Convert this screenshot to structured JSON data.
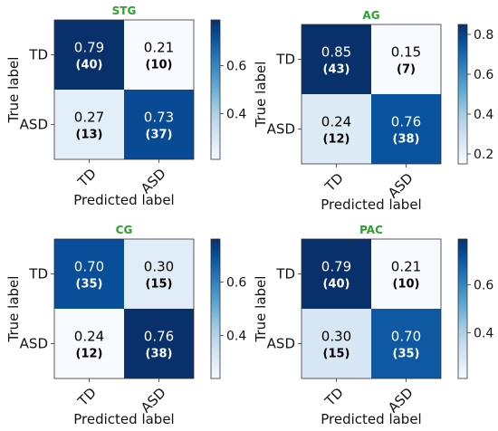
{
  "chart_data": [
    {
      "type": "heatmap",
      "title": "STG",
      "xlabel": "Predicted label",
      "ylabel": "True label",
      "x_categories": [
        "TD",
        "ASD"
      ],
      "y_categories": [
        "TD",
        "ASD"
      ],
      "values": [
        [
          0.79,
          0.21
        ],
        [
          0.27,
          0.73
        ]
      ],
      "value_labels": [
        [
          "0.79",
          "0.21"
        ],
        [
          "0.27",
          "0.73"
        ]
      ],
      "count_labels": [
        [
          "(40)",
          "(10)"
        ],
        [
          "(13)",
          "(37)"
        ]
      ],
      "colorbar": {
        "range": [
          0.21,
          0.79
        ],
        "ticks": [
          0.4,
          0.6
        ],
        "tick_labels": [
          "0.4",
          "0.6"
        ]
      }
    },
    {
      "type": "heatmap",
      "title": "AG",
      "xlabel": "Predicted label",
      "ylabel": "True label",
      "x_categories": [
        "TD",
        "ASD"
      ],
      "y_categories": [
        "TD",
        "ASD"
      ],
      "values": [
        [
          0.85,
          0.15
        ],
        [
          0.24,
          0.76
        ]
      ],
      "value_labels": [
        [
          "0.85",
          "0.15"
        ],
        [
          "0.24",
          "0.76"
        ]
      ],
      "count_labels": [
        [
          "(43)",
          "(7)"
        ],
        [
          "(12)",
          "(38)"
        ]
      ],
      "colorbar": {
        "range": [
          0.15,
          0.85
        ],
        "ticks": [
          0.2,
          0.4,
          0.6,
          0.8
        ],
        "tick_labels": [
          "0.2",
          "0.4",
          "0.6",
          "0.8"
        ]
      }
    },
    {
      "type": "heatmap",
      "title": "CG",
      "xlabel": "Predicted label",
      "ylabel": "True label",
      "x_categories": [
        "TD",
        "ASD"
      ],
      "y_categories": [
        "TD",
        "ASD"
      ],
      "values": [
        [
          0.7,
          0.3
        ],
        [
          0.24,
          0.76
        ]
      ],
      "value_labels": [
        [
          "0.70",
          "0.30"
        ],
        [
          "0.24",
          "0.76"
        ]
      ],
      "count_labels": [
        [
          "(35)",
          "(15)"
        ],
        [
          "(12)",
          "(38)"
        ]
      ],
      "colorbar": {
        "range": [
          0.24,
          0.76
        ],
        "ticks": [
          0.4,
          0.6
        ],
        "tick_labels": [
          "0.4",
          "0.6"
        ]
      }
    },
    {
      "type": "heatmap",
      "title": "PAC",
      "xlabel": "Predicted label",
      "ylabel": "True label",
      "x_categories": [
        "TD",
        "ASD"
      ],
      "y_categories": [
        "TD",
        "ASD"
      ],
      "values": [
        [
          0.79,
          0.21
        ],
        [
          0.3,
          0.7
        ]
      ],
      "value_labels": [
        [
          "0.79",
          "0.21"
        ],
        [
          "0.30",
          "0.70"
        ]
      ],
      "count_labels": [
        [
          "(40)",
          "(10)"
        ],
        [
          "(15)",
          "(35)"
        ]
      ],
      "colorbar": {
        "range": [
          0.21,
          0.79
        ],
        "ticks": [
          0.4,
          0.6
        ],
        "tick_labels": [
          "0.4",
          "0.6"
        ]
      }
    }
  ]
}
